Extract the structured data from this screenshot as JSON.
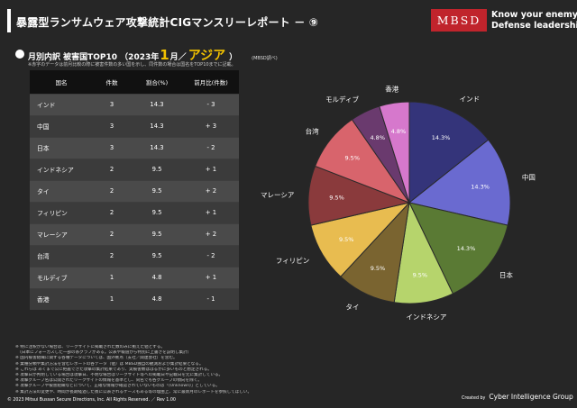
{
  "header": {
    "title": "暴露型ランサムウェア攻撃統計CIGマンスリーレポート － ⑨",
    "brand_name": "MBSD",
    "tagline_line1": "Know your enemy.",
    "tagline_line2": "Defense leadership."
  },
  "subtitle": {
    "prefix": "月別内訳 被害国TOP10 （2023年",
    "month": "1",
    "suffix": "月／",
    "region": "アジア",
    "close": "）",
    "source": "(MBSD調べ)"
  },
  "note_top": "※赤字のデータは前月比較の際に被害件数の多い国を示し、同件数の場合は国名をTOP10までに記載。",
  "table": {
    "headers": [
      "国名",
      "件数",
      "割合(%)",
      "前月比(件数)"
    ],
    "rows": [
      [
        "インド",
        "3",
        "14.3",
        "- 3"
      ],
      [
        "中国",
        "3",
        "14.3",
        "+ 3"
      ],
      [
        "日本",
        "3",
        "14.3",
        "- 2"
      ],
      [
        "インドネシア",
        "2",
        "9.5",
        "+ 1"
      ],
      [
        "タイ",
        "2",
        "9.5",
        "+ 2"
      ],
      [
        "フィリピン",
        "2",
        "9.5",
        "+ 1"
      ],
      [
        "マレーシア",
        "2",
        "9.5",
        "+ 2"
      ],
      [
        "台湾",
        "2",
        "9.5",
        "- 2"
      ],
      [
        "モルディブ",
        "1",
        "4.8",
        "+ 1"
      ],
      [
        "香港",
        "1",
        "4.8",
        "- 1"
      ]
    ]
  },
  "chart_data": {
    "type": "pie",
    "categories": [
      "インド",
      "中国",
      "日本",
      "インドネシア",
      "タイ",
      "フィリピン",
      "マレーシア",
      "台湾",
      "モルディブ",
      "香港"
    ],
    "values": [
      14.3,
      14.3,
      14.3,
      9.5,
      9.5,
      9.5,
      9.5,
      9.5,
      4.8,
      4.8
    ],
    "data_labels": [
      "14.3%",
      "14.3%",
      "14.3%",
      "9.5%",
      "9.5%",
      "9.5%",
      "9.5%",
      "9.5%",
      "4.8%",
      "4.8%"
    ],
    "colors": [
      "#34347a",
      "#6a6ad0",
      "#5a7a34",
      "#b6d46c",
      "#7a6430",
      "#e8bc50",
      "#8a3a3c",
      "#d8646c",
      "#6a3a6e",
      "#d678cc"
    ],
    "start_angle_deg": 0,
    "direction": "clockwise"
  },
  "footnotes": [
    "※ 特に注釈がない場合は、リークサイトに掲載された数のみに拠えた値とする。",
    "　（日本にフォーカスした一部の系グラフがある。公表や報道から特別に上書きを説明し集計）",
    "※ 国内被害組織に関する各種データについては、国外拠点（支社／関連会社）を含む。",
    "※ 業種分類や集計方法を含むレポートの各データ（値）は MBSD独自の観測および集計結果となる。",
    "※ これらは あくまで公に把握できた攻撃の集計結果であり、実被害数ははるかに多いものと想定される。",
    "※ 攻撃日が判明している場合は攻撃日、不明な場合はリークサイト等への掲載日や記載日を元に集計している。",
    "※ 攻撃グループ名は公開されたリークサイトの情報を基準とし、同名でも各グループの傾向を除く。",
    "※ 攻撃グループや被害組織などについて、正確な情報が確認されていないものは「(Unknown)」としている。",
    "※ 集計方法の変更や、時間が長期経過した後に公表されるケースもある等の理由上、常に最新月のレポートを参照してほしい。"
  ],
  "footer": {
    "copyright": "© 2023 Mitsui Bussan Secure Directions, Inc.  All Rights Reserved. ／ Rev 1.00",
    "created_by": "Created by",
    "cig": "Cyber Intelligence Group"
  }
}
